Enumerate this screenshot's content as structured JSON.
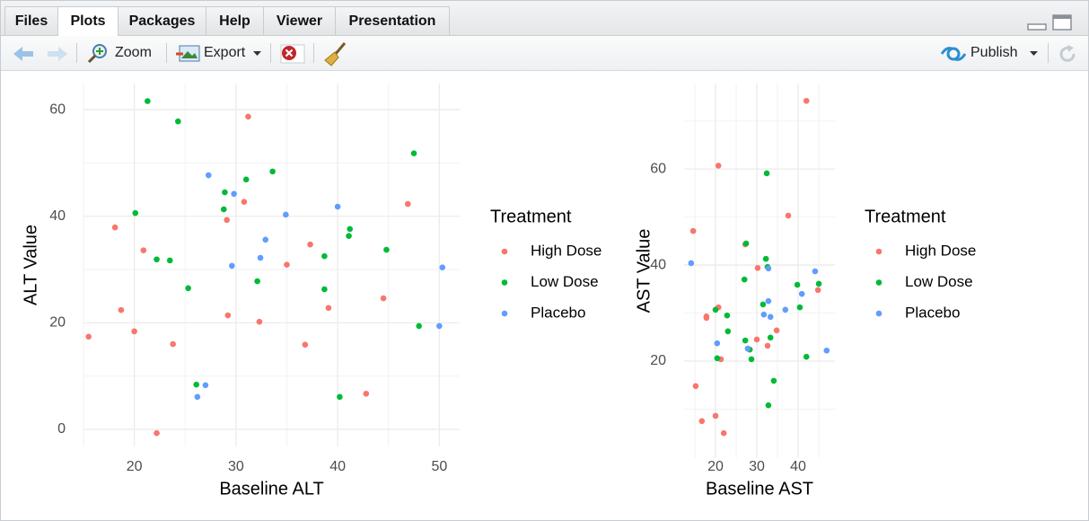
{
  "ui": {
    "tabs": [
      "Files",
      "Plots",
      "Packages",
      "Help",
      "Viewer",
      "Presentation"
    ],
    "toolbar": {
      "zoom": "Zoom",
      "export": "Export",
      "publish": "Publish"
    }
  },
  "chart_data": [
    {
      "type": "scatter",
      "x_label": "Baseline ALT",
      "y_label": "ALT Value",
      "legend_title": "Treatment",
      "xlim": [
        15,
        52
      ],
      "ylim": [
        -3.2,
        64.9
      ],
      "xticks": [
        20,
        30,
        40,
        50
      ],
      "yticks": [
        0,
        20,
        40,
        60
      ],
      "minor_xticks": [
        15,
        25,
        35,
        45
      ],
      "minor_yticks": [
        10,
        30,
        50
      ],
      "grid": true,
      "legend": "right",
      "series": [
        {
          "name": "High Dose",
          "color": "#F8766D",
          "x": [
            15.5,
            18.1,
            18.7,
            20.0,
            20.9,
            22.2,
            23.8,
            29.2,
            29.1,
            30.8,
            31.2,
            32.3,
            35.0,
            37.3,
            36.8,
            39.1,
            42.8,
            44.5,
            46.9
          ],
          "values": [
            17.4,
            37.9,
            22.4,
            18.4,
            33.6,
            -0.7,
            16.0,
            21.4,
            39.3,
            42.7,
            58.7,
            20.2,
            30.9,
            34.7,
            15.9,
            22.8,
            6.7,
            24.6,
            42.3
          ]
        },
        {
          "name": "Low Dose",
          "color": "#00BA38",
          "x": [
            21.3,
            20.1,
            22.2,
            23.5,
            24.3,
            25.3,
            26.1,
            28.9,
            28.8,
            31.0,
            32.1,
            33.6,
            38.7,
            38.7,
            41.2,
            41.1,
            40.2,
            44.8,
            47.5,
            48.0
          ],
          "values": [
            61.6,
            40.6,
            31.9,
            31.7,
            57.8,
            26.5,
            8.4,
            44.5,
            41.3,
            46.9,
            27.8,
            48.4,
            32.5,
            26.3,
            37.6,
            36.3,
            6.1,
            33.7,
            51.8,
            19.4
          ]
        },
        {
          "name": "Placebo",
          "color": "#619CFF",
          "x": [
            27.3,
            29.8,
            29.6,
            32.9,
            32.4,
            34.9,
            40.0,
            26.2,
            27.0,
            50.0,
            50.3
          ],
          "values": [
            47.7,
            44.2,
            30.7,
            35.6,
            32.2,
            40.3,
            41.8,
            6.1,
            8.3,
            19.4,
            30.4
          ]
        }
      ]
    },
    {
      "type": "scatter",
      "x_label": "Baseline AST",
      "y_label": "AST Value",
      "legend_title": "Treatment",
      "xlim": [
        12.4,
        48.9
      ],
      "ylim": [
        -0.2,
        77.8
      ],
      "xticks": [
        20,
        30,
        40
      ],
      "yticks": [
        20,
        40,
        60
      ],
      "minor_xticks": [
        15,
        25,
        35,
        45
      ],
      "minor_yticks": [
        10,
        30,
        50,
        70
      ],
      "grid": true,
      "legend": "right",
      "series": [
        {
          "name": "High Dose",
          "color": "#F8766D",
          "x": [
            14.6,
            15.2,
            16.7,
            17.8,
            17.8,
            20.0,
            20.7,
            20.7,
            21.3,
            22.0,
            27.2,
            30.2,
            30.0,
            32.6,
            34.8,
            37.6,
            42.0,
            44.8
          ],
          "values": [
            47.1,
            14.8,
            7.5,
            29.3,
            29.0,
            8.6,
            31.2,
            60.7,
            20.4,
            5.0,
            44.3,
            39.4,
            24.5,
            23.2,
            26.4,
            50.3,
            74.2,
            34.8
          ]
        },
        {
          "name": "Low Dose",
          "color": "#00BA38",
          "x": [
            20.0,
            20.4,
            22.8,
            23.0,
            27.0,
            27.4,
            27.2,
            28.3,
            28.7,
            31.5,
            32.2,
            32.4,
            32.6,
            33.3,
            34.1,
            32.8,
            39.8,
            40.4,
            42.0,
            45.0
          ],
          "values": [
            30.7,
            20.6,
            29.5,
            26.2,
            37.0,
            44.5,
            24.3,
            22.4,
            20.4,
            31.8,
            41.3,
            59.1,
            39.6,
            24.9,
            15.9,
            10.8,
            35.9,
            31.2,
            20.9,
            36.1
          ]
        },
        {
          "name": "Placebo",
          "color": "#619CFF",
          "x": [
            14.1,
            20.4,
            27.8,
            31.7,
            32.8,
            33.3,
            32.8,
            36.9,
            40.9,
            44.1,
            46.9
          ],
          "values": [
            40.4,
            23.7,
            22.6,
            29.7,
            32.5,
            29.2,
            39.3,
            30.7,
            34.0,
            38.7,
            22.2
          ]
        }
      ]
    }
  ]
}
